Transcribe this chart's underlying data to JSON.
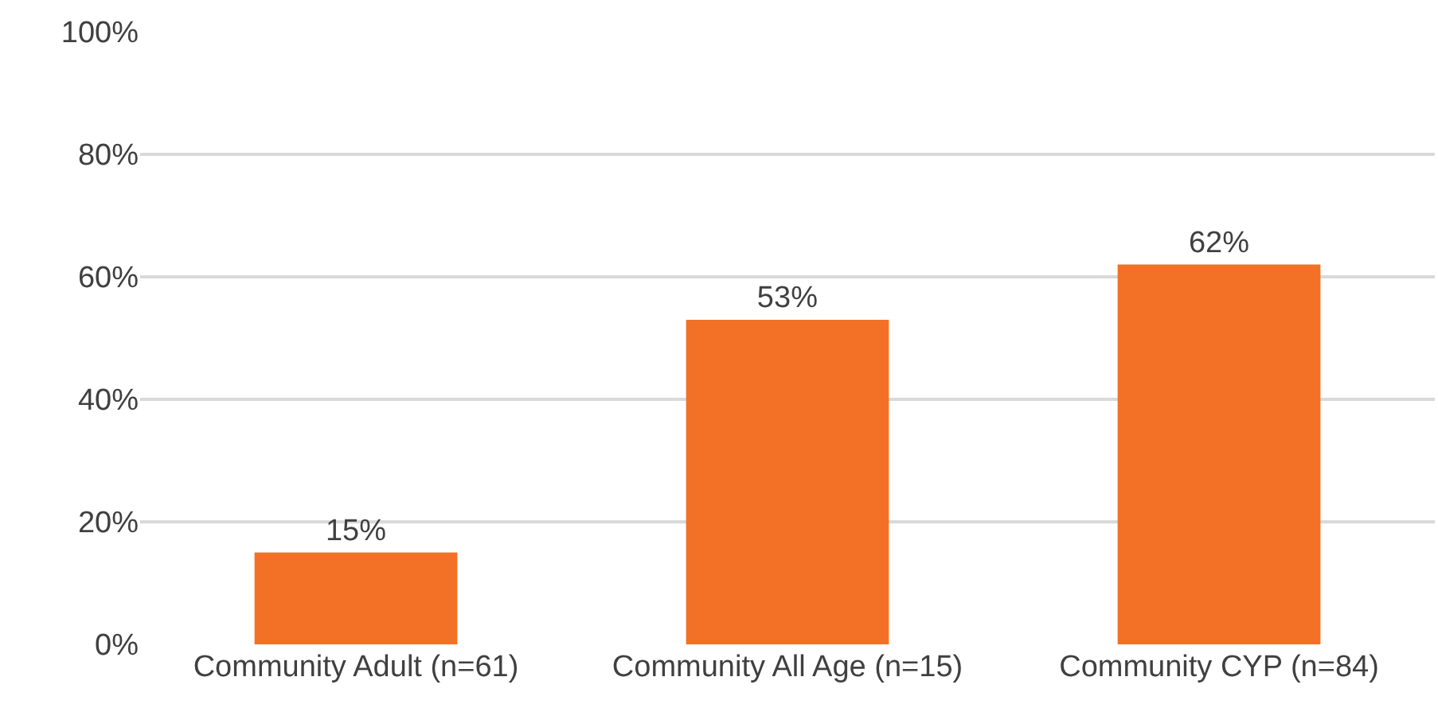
{
  "chart_data": {
    "type": "bar",
    "categories": [
      "Community Adult (n=61)",
      "Community All Age (n=15)",
      "Community CYP (n=84)"
    ],
    "values": [
      15,
      53,
      62
    ],
    "color": "#f37027",
    "value_labels": [
      "15%",
      "53%",
      "62%"
    ],
    "ylim": [
      0,
      100
    ],
    "yticks": [
      {
        "value": 0,
        "label": "0%"
      },
      {
        "value": 20,
        "label": "20%"
      },
      {
        "value": 40,
        "label": "40%"
      },
      {
        "value": 60,
        "label": "60%"
      },
      {
        "value": 80,
        "label": "80%"
      },
      {
        "value": 100,
        "label": "100%"
      }
    ],
    "grid": "y"
  }
}
